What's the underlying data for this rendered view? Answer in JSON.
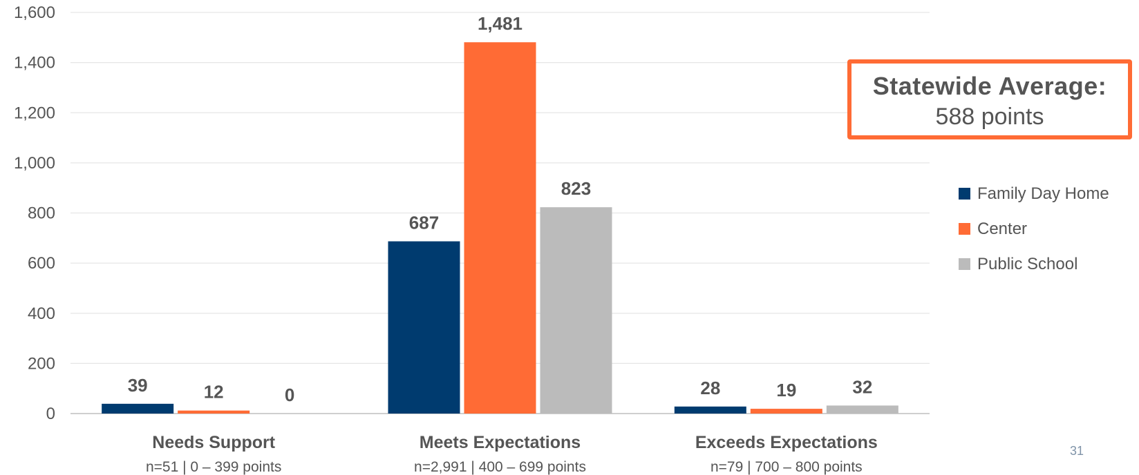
{
  "chart_data": {
    "type": "bar",
    "categories": [
      "Needs Support",
      "Meets Expectations",
      "Exceeds Expectations"
    ],
    "category_sublabels": [
      "n=51 | 0 – 399 points",
      "n=2,991 | 400 – 699 points",
      "n=79 | 700 – 800 points"
    ],
    "series": [
      {
        "name": "Family Day Home",
        "values": [
          39,
          687,
          28
        ],
        "color": "#003B6F"
      },
      {
        "name": "Center",
        "values": [
          12,
          1481,
          19
        ],
        "color": "#FF6B35"
      },
      {
        "name": "Public School",
        "values": [
          0,
          823,
          32
        ],
        "color": "#BBBBBB"
      }
    ],
    "data_labels": [
      [
        "39",
        "687",
        "28"
      ],
      [
        "12",
        "1,481",
        "19"
      ],
      [
        "0",
        "823",
        "32"
      ]
    ],
    "ylim": [
      0,
      1600
    ],
    "yticks": [
      0,
      200,
      400,
      600,
      800,
      1000,
      1200,
      1400,
      1600
    ],
    "ytick_labels": [
      "0",
      "200",
      "400",
      "600",
      "800",
      "1,000",
      "1,200",
      "1,400",
      "1,600"
    ],
    "grid": true,
    "legend_position": "right",
    "title": "",
    "xlabel": "",
    "ylabel": ""
  },
  "callout": {
    "title": "Statewide Average:",
    "value": "588 points"
  },
  "page_number": "31"
}
